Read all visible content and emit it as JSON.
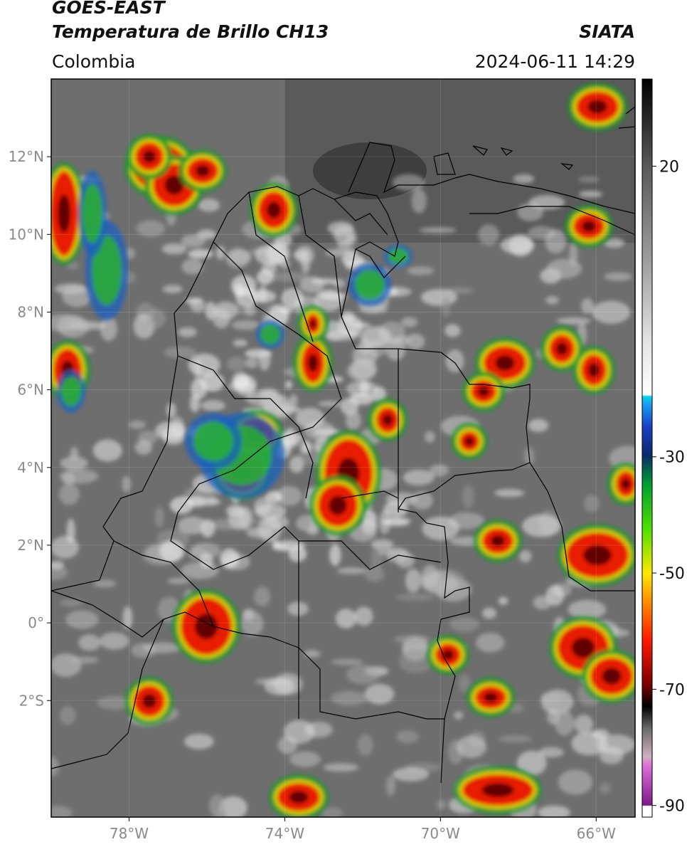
{
  "header": {
    "title_line1": "GOES-EAST",
    "title_line2": "Temperatura de Brillo CH13",
    "organization": "SIATA",
    "region": "Colombia",
    "datetime": "2024-06-11 14:29"
  },
  "map": {
    "lon_range": [
      -80,
      -65
    ],
    "lat_range": [
      -5,
      14
    ],
    "lat_ticks": [
      {
        "value": 12,
        "label": "12°N"
      },
      {
        "value": 10,
        "label": "10°N"
      },
      {
        "value": 8,
        "label": "8°N"
      },
      {
        "value": 6,
        "label": "6°N"
      },
      {
        "value": 4,
        "label": "4°N"
      },
      {
        "value": 2,
        "label": "2°N"
      },
      {
        "value": 0,
        "label": "0°"
      },
      {
        "value": -2,
        "label": "2°S"
      }
    ],
    "lon_ticks": [
      {
        "value": -78,
        "label": "78°W"
      },
      {
        "value": -74,
        "label": "74°W"
      },
      {
        "value": -70,
        "label": "70°W"
      },
      {
        "value": -66,
        "label": "66°W"
      }
    ],
    "colors": {
      "border": "#000000",
      "background": "#6e6e6e"
    }
  },
  "colorbar": {
    "range": [
      -92,
      35
    ],
    "ticks": [
      {
        "value": 20,
        "label": "20"
      },
      {
        "value": -30,
        "label": "-30"
      },
      {
        "value": -50,
        "label": "-50"
      },
      {
        "value": -70,
        "label": "-70"
      },
      {
        "value": -90,
        "label": "-90"
      }
    ]
  }
}
